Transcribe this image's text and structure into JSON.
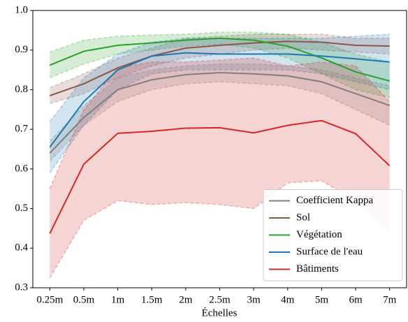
{
  "chart_data": {
    "type": "line",
    "xlabel": "Échelles",
    "categories": [
      "0.25m",
      "0.5m",
      "1m",
      "1.5m",
      "2m",
      "2.5m",
      "3m",
      "4m",
      "5m",
      "6m",
      "7m"
    ],
    "ylim": [
      0.3,
      1
    ],
    "yticks": [
      0.3,
      0.4,
      0.5,
      0.6,
      0.7,
      0.8,
      0.9,
      {
        "value": 1,
        "label": "1.0"
      }
    ],
    "legend": "lower right",
    "series": [
      {
        "name": "Coefficient Kappa",
        "color": "#7f7f7f",
        "values": [
          0.64,
          0.73,
          0.8,
          0.825,
          0.838,
          0.843,
          0.84,
          0.835,
          0.82,
          0.79,
          0.76
        ],
        "lower": [
          0.62,
          0.71,
          0.77,
          0.8,
          0.815,
          0.82,
          0.815,
          0.81,
          0.79,
          0.75,
          0.71
        ],
        "upper": [
          0.67,
          0.76,
          0.83,
          0.85,
          0.86,
          0.865,
          0.865,
          0.86,
          0.85,
          0.83,
          0.81
        ]
      },
      {
        "name": "Sol",
        "color": "#8c564b",
        "values": [
          0.785,
          0.815,
          0.855,
          0.885,
          0.905,
          0.912,
          0.918,
          0.922,
          0.92,
          0.912,
          0.91
        ],
        "lower": [
          0.765,
          0.79,
          0.83,
          0.86,
          0.88,
          0.89,
          0.9,
          0.905,
          0.9,
          0.895,
          0.89
        ],
        "upper": [
          0.805,
          0.84,
          0.88,
          0.905,
          0.93,
          0.935,
          0.94,
          0.94,
          0.94,
          0.93,
          0.93
        ]
      },
      {
        "name": "Végétation",
        "color": "#2ca02c",
        "values": [
          0.862,
          0.897,
          0.912,
          0.918,
          0.925,
          0.93,
          0.925,
          0.91,
          0.88,
          0.845,
          0.822
        ],
        "lower": [
          0.83,
          0.865,
          0.89,
          0.9,
          0.91,
          0.915,
          0.905,
          0.88,
          0.84,
          0.8,
          0.78
        ],
        "upper": [
          0.895,
          0.925,
          0.935,
          0.938,
          0.94,
          0.945,
          0.945,
          0.94,
          0.92,
          0.89,
          0.87
        ]
      },
      {
        "name": "Surface de l'eau",
        "color": "#1f77b4",
        "values": [
          0.655,
          0.77,
          0.85,
          0.885,
          0.893,
          0.89,
          0.89,
          0.89,
          0.885,
          0.878,
          0.87
        ],
        "lower": [
          0.59,
          0.71,
          0.8,
          0.84,
          0.85,
          0.85,
          0.85,
          0.85,
          0.84,
          0.82,
          0.8
        ],
        "upper": [
          0.72,
          0.83,
          0.89,
          0.92,
          0.93,
          0.93,
          0.93,
          0.93,
          0.93,
          0.935,
          0.94
        ]
      },
      {
        "name": "Bâtiments",
        "color": "#d62728",
        "values": [
          0.437,
          0.612,
          0.69,
          0.695,
          0.703,
          0.704,
          0.691,
          0.71,
          0.722,
          0.689,
          0.608
        ],
        "lower": [
          0.325,
          0.47,
          0.52,
          0.51,
          0.515,
          0.51,
          0.5,
          0.565,
          0.57,
          0.52,
          0.445
        ],
        "upper": [
          0.55,
          0.75,
          0.855,
          0.87,
          0.87,
          0.875,
          0.88,
          0.86,
          0.87,
          0.86,
          0.77
        ]
      }
    ]
  }
}
